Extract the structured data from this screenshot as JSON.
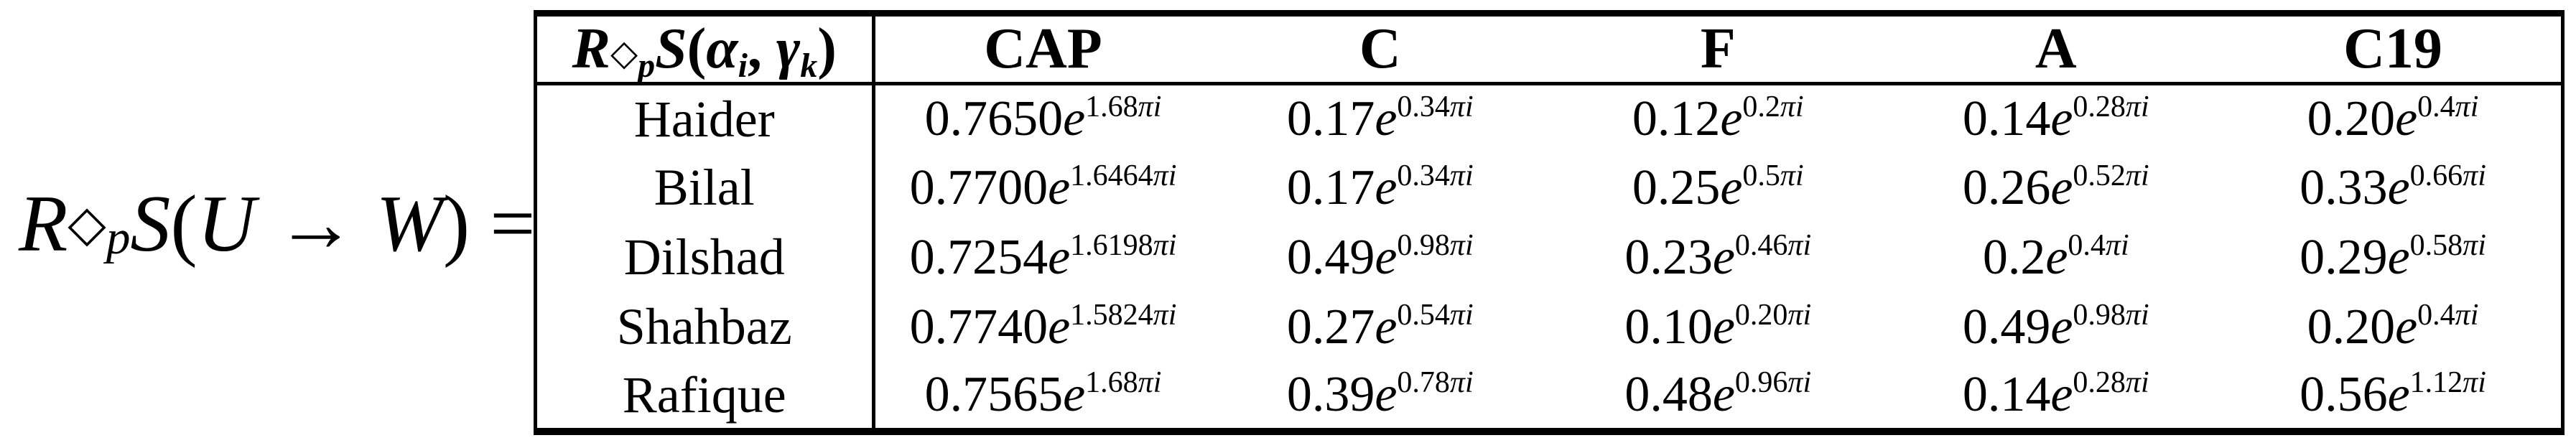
{
  "equation": {
    "lhs": "R◇_pS(U → W) ="
  },
  "table": {
    "corner_header": "R◇_pS(α_i, γ_k)",
    "columns": [
      "CAP",
      "C",
      "F",
      "A",
      "C19"
    ],
    "rows": [
      {
        "label": "Haider",
        "values": [
          "0.7650e^{1.68πi}",
          "0.17e^{0.34πi}",
          "0.12e^{0.2πi}",
          "0.14e^{0.28πi}",
          "0.20e^{0.4πi}"
        ]
      },
      {
        "label": "Bilal",
        "values": [
          "0.7700e^{1.6464πi}",
          "0.17e^{0.34πi}",
          "0.25e^{0.5πi}",
          "0.26e^{0.52πi}",
          "0.33e^{0.66πi}"
        ]
      },
      {
        "label": "Dilshad",
        "values": [
          "0.7254e^{1.6198πi}",
          "0.49e^{0.98πi}",
          "0.23e^{0.46πi}",
          "0.2e^{0.4πi}",
          "0.29e^{0.58πi}"
        ]
      },
      {
        "label": "Shahbaz",
        "values": [
          "0.7740e^{1.5824πi}",
          "0.27e^{0.54πi}",
          "0.10e^{0.20πi}",
          "0.49e^{0.98πi}",
          "0.20e^{0.4πi}"
        ]
      },
      {
        "label": "Rafique",
        "values": [
          "0.7565e^{1.68πi}",
          "0.39e^{0.78πi}",
          "0.48e^{0.96πi}",
          "0.14e^{0.28πi}",
          "0.56e^{1.12πi}"
        ]
      }
    ]
  },
  "colors": {
    "text": "#000000",
    "background": "#ffffff",
    "border": "#000000"
  }
}
